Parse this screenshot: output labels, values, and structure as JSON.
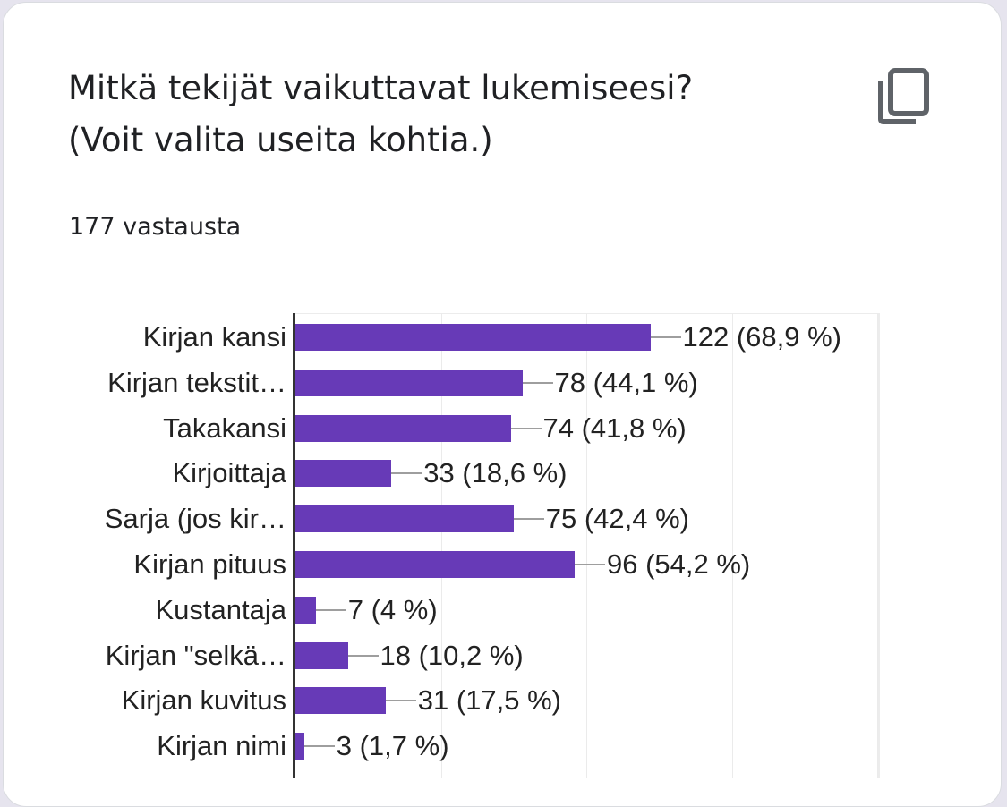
{
  "question": {
    "title_line1": "Mitkä tekijät vaikuttavat lukemiseesi?",
    "title_line2": "(Voit valita useita kohtia.)",
    "response_count": "177 vastausta",
    "copy_icon": "copy-icon"
  },
  "colors": {
    "bar": "#673ab7",
    "axis": "#333333",
    "gridline": "#ebebeb",
    "connector": "#9e9e9e",
    "text": "#202124",
    "page_background": "#e6e4ee"
  },
  "chart_data": {
    "type": "bar",
    "orientation": "horizontal",
    "title": "Mitkä tekijät vaikuttavat lukemiseesi? (Voit valita useita kohtia.)",
    "subtitle": "177 vastausta",
    "total_responses": 177,
    "categories": [
      "Kirjan kansi",
      "Kirjan tekstit…",
      "Takakansi",
      "Kirjoittaja",
      "Sarja (jos kir…",
      "Kirjan pituus",
      "Kustantaja",
      "Kirjan \"selkä…",
      "Kirjan kuvitus",
      "Kirjan nimi"
    ],
    "values": [
      122,
      78,
      74,
      33,
      75,
      96,
      7,
      18,
      31,
      3
    ],
    "percentages": [
      "68,9 %",
      "44,1 %",
      "41,8 %",
      "18,6 %",
      "42,4 %",
      "54,2 %",
      "4 %",
      "10,2 %",
      "17,5 %",
      "1,7 %"
    ],
    "data_labels": [
      "122 (68,9 %)",
      "78 (44,1 %)",
      "74 (41,8 %)",
      "33 (18,6 %)",
      "75 (42,4 %)",
      "96 (54,2 %)",
      "7 (4 %)",
      "18 (10,2 %)",
      "31 (17,5 %)",
      "3 (1,7 %)"
    ],
    "xlabel": "",
    "ylabel": "",
    "xlim": [
      0,
      200
    ],
    "gridlines_at": [
      0,
      50,
      100,
      150,
      200
    ],
    "grid": true,
    "legend": "none"
  }
}
